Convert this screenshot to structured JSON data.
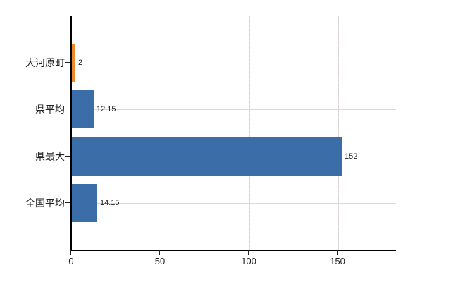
{
  "chart_data": {
    "type": "bar",
    "orientation": "horizontal",
    "title": "",
    "xlabel": "",
    "ylabel": "",
    "categories": [
      "大河原町",
      "県平均",
      "県最大",
      "全国平均"
    ],
    "values": [
      2,
      12.15,
      152,
      14.15
    ],
    "value_labels": [
      "2",
      "12.15",
      "152",
      "14.15"
    ],
    "bar_colors": [
      "#ec8a2c",
      "#3b6da8",
      "#3b6da8",
      "#3b6da8"
    ],
    "x_ticks": [
      0,
      50,
      100,
      150
    ],
    "x_tick_labels": [
      "0",
      "50",
      "100",
      "150"
    ],
    "xlim": [
      0,
      182.5
    ],
    "grid": true,
    "legend": false,
    "colors": {
      "bar_blue": "#3b6da8",
      "bar_orange": "#ec8a2c",
      "axis": "#000000",
      "gridline_h": "#d4dcd4",
      "gridline_v": "#d6d2d6",
      "top_border": "#cccccc",
      "text": "#222222",
      "background": "#ffffff"
    }
  }
}
